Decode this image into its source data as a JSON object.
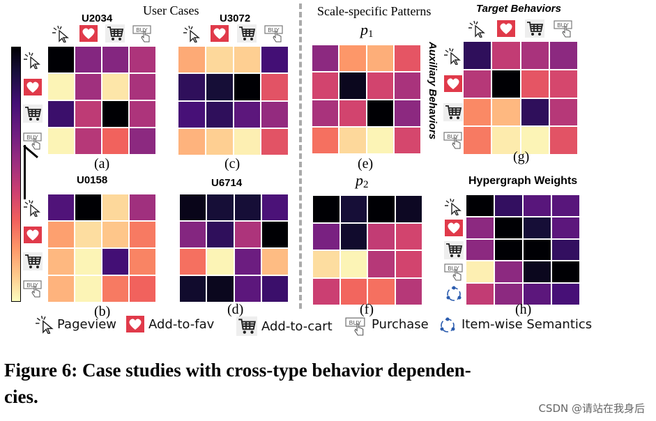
{
  "headers": {
    "user_cases": "User Cases",
    "scale_patterns": "Scale-specific Patterns",
    "target_behaviors": "Target Behaviors",
    "auxiliary_behaviors": "Auxiliary Behaviors",
    "hypergraph_weights": "Hypergraph Weights"
  },
  "colormap": "magma (reversed, light = low, dark = high)",
  "panels": [
    {
      "id": "a",
      "title": "U2034",
      "label": "(a)",
      "values": [
        [
          1.0,
          0.62,
          0.62,
          0.52
        ],
        [
          0.02,
          0.55,
          0.05,
          0.53
        ],
        [
          0.8,
          0.48,
          1.0,
          0.52
        ],
        [
          0.02,
          0.5,
          0.33,
          0.6
        ]
      ]
    },
    {
      "id": "c",
      "title": "U3072",
      "label": "(c)",
      "values": [
        [
          0.18,
          0.08,
          0.1,
          0.78
        ],
        [
          0.83,
          0.9,
          1.0,
          0.38
        ],
        [
          0.77,
          0.83,
          0.72,
          0.58
        ],
        [
          0.16,
          0.1,
          0.03,
          0.38
        ]
      ]
    },
    {
      "id": "b",
      "title": "U0158",
      "label": "(b)",
      "values": [
        [
          0.75,
          1.0,
          0.08,
          0.55
        ],
        [
          0.2,
          0.07,
          0.12,
          0.28
        ],
        [
          0.15,
          0.02,
          0.78,
          0.26
        ],
        [
          0.16,
          0.02,
          0.28,
          0.33
        ]
      ]
    },
    {
      "id": "d",
      "title": "U6714",
      "label": "(d)",
      "values": [
        [
          0.96,
          0.9,
          0.9,
          0.76
        ],
        [
          0.62,
          0.83,
          0.52,
          1.0
        ],
        [
          0.3,
          0.02,
          0.68,
          0.14
        ],
        [
          0.92,
          0.95,
          0.72,
          0.8
        ]
      ]
    },
    {
      "id": "e",
      "title": "p",
      "title_sub": "1",
      "label": "(e)",
      "values": [
        [
          0.6,
          0.22,
          0.17,
          0.37
        ],
        [
          0.43,
          0.95,
          0.43,
          0.53
        ],
        [
          0.53,
          0.43,
          1.0,
          0.6
        ],
        [
          0.3,
          0.08,
          0.02,
          0.42
        ]
      ]
    },
    {
      "id": "f",
      "title": "p",
      "title_sub": "2",
      "label": "(f)",
      "values": [
        [
          1.0,
          0.9,
          1.0,
          0.94
        ],
        [
          0.65,
          0.92,
          0.47,
          0.43
        ],
        [
          0.07,
          0.02,
          0.5,
          0.43
        ],
        [
          0.45,
          0.32,
          0.3,
          0.5
        ]
      ]
    },
    {
      "id": "g",
      "label": "(g)",
      "values": [
        [
          0.83,
          0.47,
          0.53,
          0.6
        ],
        [
          0.5,
          1.0,
          0.37,
          0.42
        ],
        [
          0.25,
          0.15,
          0.83,
          0.5
        ],
        [
          0.28,
          0.04,
          0.02,
          0.38
        ]
      ]
    },
    {
      "id": "h",
      "label": "(h)",
      "values": [
        [
          1.0,
          0.82,
          0.73,
          0.73
        ],
        [
          0.6,
          1.0,
          0.9,
          0.72
        ],
        [
          0.6,
          1.0,
          1.0,
          0.82
        ],
        [
          0.03,
          0.6,
          0.95,
          1.0
        ],
        [
          0.47,
          0.6,
          0.72,
          0.77
        ]
      ]
    }
  ],
  "icons": {
    "buy_text": "BUY"
  },
  "legend": [
    {
      "icon": "pageview-icon",
      "label": "Pageview"
    },
    {
      "icon": "heart-icon",
      "label": "Add-to-fav"
    },
    {
      "icon": "cart-icon",
      "label": "Add-to-cart"
    },
    {
      "icon": "buy-icon",
      "label": "Purchase"
    },
    {
      "icon": "semantics-icon",
      "label": "Item-wise Semantics"
    }
  ],
  "caption": "Figure 6: Case studies with cross-type behavior dependen-cies.",
  "caption_lines": [
    "Figure 6: Case studies with cross-type behavior dependen-",
    "cies."
  ],
  "watermark": "CSDN @请站在我身后",
  "colors": {
    "heart": "#e03a4a",
    "semantics": "#2b5cae",
    "divider": "#aaaaaa"
  }
}
